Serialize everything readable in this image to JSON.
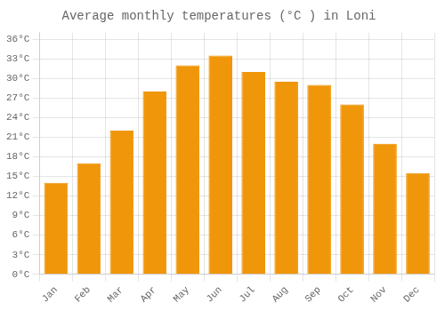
{
  "chart_data": {
    "type": "bar",
    "title": "Average monthly temperatures (°C ) in Loni",
    "categories": [
      "Jan",
      "Feb",
      "Mar",
      "Apr",
      "May",
      "Jun",
      "Jul",
      "Aug",
      "Sep",
      "Oct",
      "Nov",
      "Dec"
    ],
    "values": [
      14,
      17,
      22,
      28,
      32,
      33.5,
      31,
      29.5,
      29,
      26,
      20,
      15.5
    ],
    "color": "#F0960A",
    "ylim": [
      0,
      37
    ],
    "yticks": [
      {
        "value": 0,
        "label": "0°C"
      },
      {
        "value": 3,
        "label": "3°C"
      },
      {
        "value": 6,
        "label": "6°C"
      },
      {
        "value": 9,
        "label": "9°C"
      },
      {
        "value": 12,
        "label": "12°C"
      },
      {
        "value": 15,
        "label": "15°C"
      },
      {
        "value": 18,
        "label": "18°C"
      },
      {
        "value": 21,
        "label": "21°C"
      },
      {
        "value": 24,
        "label": "24°C"
      },
      {
        "value": 27,
        "label": "27°C"
      },
      {
        "value": 30,
        "label": "30°C"
      },
      {
        "value": 33,
        "label": "33°C"
      },
      {
        "value": 36,
        "label": "36°C"
      }
    ],
    "grid": true
  }
}
